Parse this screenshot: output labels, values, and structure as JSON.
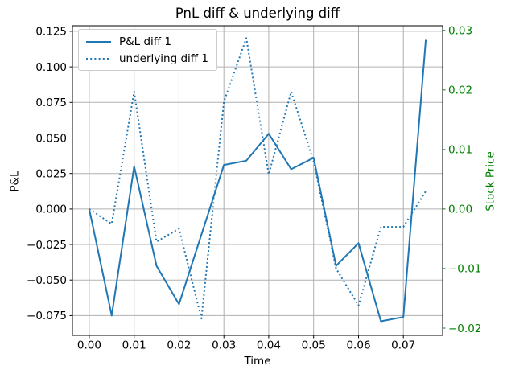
{
  "figure": {
    "background": "#ffffff"
  },
  "chart_data": {
    "type": "line",
    "title": "PnL diff & underlying diff",
    "xlabel": "Time",
    "ylabel_left": "P&L",
    "ylabel_right": "Stock Price",
    "grid": true,
    "legend_position": "upper left",
    "legend": [
      {
        "label": "P&L diff 1",
        "style": "solid",
        "color": "#1f77b4",
        "axis": "left"
      },
      {
        "label": "underlying diff 1",
        "style": "dotted",
        "color": "#1f77b4",
        "axis": "right"
      }
    ],
    "x": [
      0.0,
      0.005,
      0.01,
      0.015,
      0.02,
      0.025,
      0.03,
      0.035,
      0.04,
      0.045,
      0.05,
      0.055,
      0.06,
      0.065,
      0.07,
      0.075
    ],
    "series": [
      {
        "name": "P&L diff 1",
        "axis": "left",
        "style": "solid",
        "color": "#1f77b4",
        "values": [
          0.0,
          -0.075,
          0.03,
          -0.04,
          -0.067,
          -0.018,
          0.031,
          0.034,
          0.053,
          0.028,
          0.036,
          -0.04,
          -0.024,
          -0.079,
          -0.076,
          0.119
        ]
      },
      {
        "name": "underlying diff 1",
        "axis": "right",
        "style": "dotted",
        "color": "#1f77b4",
        "values": [
          0.0,
          -0.0025,
          0.0197,
          -0.0055,
          -0.0033,
          -0.0184,
          0.018,
          0.0287,
          0.0058,
          0.0197,
          0.008,
          -0.01,
          -0.0162,
          -0.003,
          -0.003,
          0.003
        ]
      }
    ],
    "xlim": [
      -0.00375,
      0.07875
    ],
    "ylim_left": [
      -0.0889,
      0.1289
    ],
    "ylim_right": [
      -0.02122,
      0.03078
    ],
    "xticks": [
      0.0,
      0.01,
      0.02,
      0.03,
      0.04,
      0.05,
      0.06,
      0.07
    ],
    "xtick_labels": [
      "0.00",
      "0.01",
      "0.02",
      "0.03",
      "0.04",
      "0.05",
      "0.06",
      "0.07"
    ],
    "yticks_left": [
      0.125,
      0.1,
      0.075,
      0.05,
      0.025,
      0.0,
      -0.025,
      -0.05,
      -0.075
    ],
    "ytick_labels_left": [
      "0.125",
      "0.100",
      "0.075",
      "0.050",
      "0.025",
      "0.000",
      "−0.025",
      "−0.050",
      "−0.075"
    ],
    "yticks_right": [
      0.03,
      0.02,
      0.01,
      0.0,
      -0.01,
      -0.02
    ],
    "ytick_labels_right": [
      "0.03",
      "0.02",
      "0.01",
      "0.00",
      "−0.01",
      "−0.02"
    ],
    "colors": {
      "line": "#1f77b4",
      "right_axis": "#008000",
      "grid": "#b0b0b0",
      "spine": "#000000",
      "tick_label": "#000000"
    }
  }
}
